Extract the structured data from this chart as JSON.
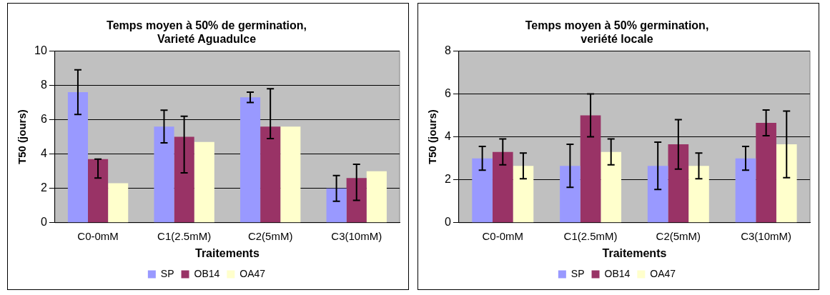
{
  "chart_data": [
    {
      "type": "bar",
      "title": "Temps moyen à 50% de germination,\nVarieté Aguadulce",
      "xlabel": "Traitements",
      "ylabel": "T50 (jours)",
      "categories": [
        "C0-0mM",
        "C1(2.5mM)",
        "C2(5mM)",
        "C3(10mM)"
      ],
      "series": [
        {
          "name": "SP",
          "color": "#9999ff",
          "values": [
            7.6,
            5.6,
            7.3,
            2.0
          ],
          "errors": [
            1.3,
            0.95,
            0.3,
            0.75
          ]
        },
        {
          "name": "OB14",
          "color": "#993366",
          "values": [
            3.7,
            5.0,
            5.6,
            2.6
          ],
          "errors": [
            [
              2.6,
              3.7
            ],
            [
              2.9,
              6.2
            ],
            [
              4.9,
              7.8
            ],
            [
              1.3,
              3.4
            ]
          ]
        },
        {
          "name": "OA47",
          "color": "#ffffcc",
          "values": [
            2.3,
            4.7,
            5.6,
            3.0
          ]
        }
      ],
      "ylim": [
        0,
        10
      ],
      "yticks": [
        0,
        2,
        4,
        6,
        8,
        10
      ],
      "grid": "y",
      "legend": "bottom"
    },
    {
      "type": "bar",
      "title": "Temps moyen à 50% germination,\nveriété locale",
      "xlabel": "Traitements",
      "ylabel": "T50 (jours)",
      "categories": [
        "C0-0mM",
        "C1(2.5mM)",
        "C2(5mM)",
        "C3(10mM)"
      ],
      "series": [
        {
          "name": "SP",
          "color": "#9999ff",
          "values": [
            3.0,
            2.65,
            2.65,
            3.0
          ],
          "errors": [
            0.55,
            1.0,
            1.1,
            0.55
          ]
        },
        {
          "name": "OB14",
          "color": "#993366",
          "values": [
            3.3,
            5.0,
            3.65,
            4.65
          ],
          "errors": [
            0.6,
            1.0,
            1.15,
            0.6
          ]
        },
        {
          "name": "OA47",
          "color": "#ffffcc",
          "values": [
            2.65,
            3.3,
            2.65,
            3.65
          ],
          "errors": [
            0.6,
            0.6,
            0.6,
            1.55
          ]
        }
      ],
      "ylim": [
        0,
        8
      ],
      "yticks": [
        0,
        2,
        4,
        6,
        8
      ],
      "grid": "y",
      "legend": "bottom"
    }
  ]
}
